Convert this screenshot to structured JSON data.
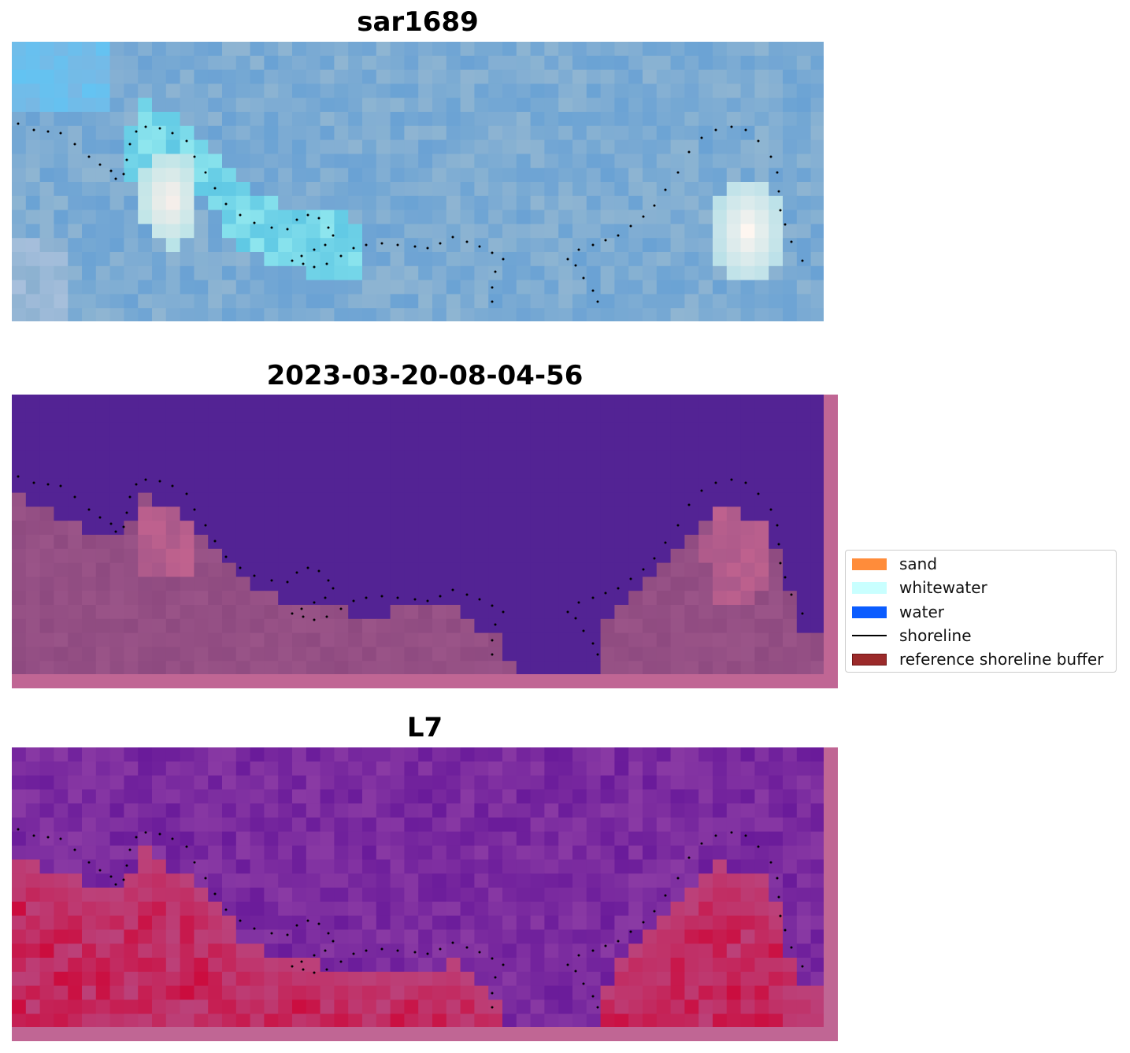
{
  "panels": [
    {
      "title": "sar1689",
      "kind": "rgb"
    },
    {
      "title": "2023-03-20-08-04-56",
      "kind": "classification"
    },
    {
      "title": "L7",
      "kind": "index"
    }
  ],
  "legend": {
    "items": [
      {
        "label": "sand",
        "color": "#ff8c3a",
        "type": "patch"
      },
      {
        "label": "whitewater",
        "color": "#c9ffff",
        "type": "patch"
      },
      {
        "label": "water",
        "color": "#0a5cff",
        "type": "patch"
      },
      {
        "label": "shoreline",
        "color": "#000000",
        "type": "line"
      },
      {
        "label": "reference shoreline buffer",
        "color": "#9b2a2a",
        "type": "patch"
      }
    ]
  },
  "colors": {
    "rgb_base": "#6fa6d6",
    "class_water": "#532394",
    "class_land": "#8a4a7e",
    "buffer": "#c06694",
    "index_high": "#c8174a",
    "index_low": "#6a1b9a"
  }
}
